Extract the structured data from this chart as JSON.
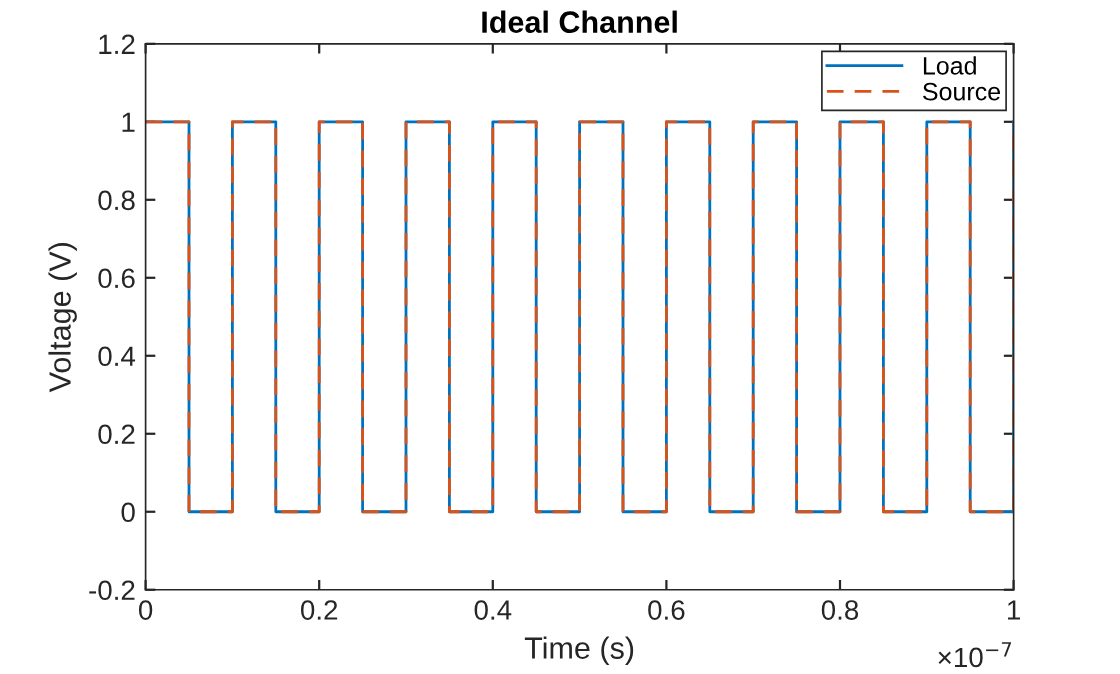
{
  "chart_data": {
    "type": "step",
    "title": "Ideal Channel",
    "xlabel": "Time (s)",
    "ylabel": "Voltage (V)",
    "x": [
      0,
      0.05,
      0.1,
      0.15,
      0.2,
      0.25,
      0.3,
      0.35,
      0.4,
      0.45,
      0.5,
      0.55,
      0.6,
      0.65,
      0.7,
      0.75,
      0.8,
      0.85,
      0.9,
      0.95,
      1
    ],
    "series": [
      {
        "name": "Load",
        "color": "#0072bd",
        "line_style": "solid",
        "values": [
          1,
          0,
          1,
          0,
          1,
          0,
          1,
          0,
          1,
          0,
          1,
          0,
          1,
          0,
          1,
          0,
          1,
          0,
          1,
          0,
          1
        ]
      },
      {
        "name": "Source",
        "color": "#d95319",
        "line_style": "dashed",
        "values": [
          1,
          0,
          1,
          0,
          1,
          0,
          1,
          0,
          1,
          0,
          1,
          0,
          1,
          0,
          1,
          0,
          1,
          0,
          1,
          0,
          1
        ]
      }
    ],
    "xlim": [
      0,
      1
    ],
    "xticks": [
      0,
      0.2,
      0.4,
      0.6,
      0.8,
      1
    ],
    "ylim": [
      -0.2,
      1.2
    ],
    "yticks": [
      -0.2,
      0,
      0.2,
      0.4,
      0.6,
      0.8,
      1,
      1.2
    ],
    "annotations": [
      "×10$^{−7}$"
    ],
    "legend": "top right",
    "grid": false
  }
}
